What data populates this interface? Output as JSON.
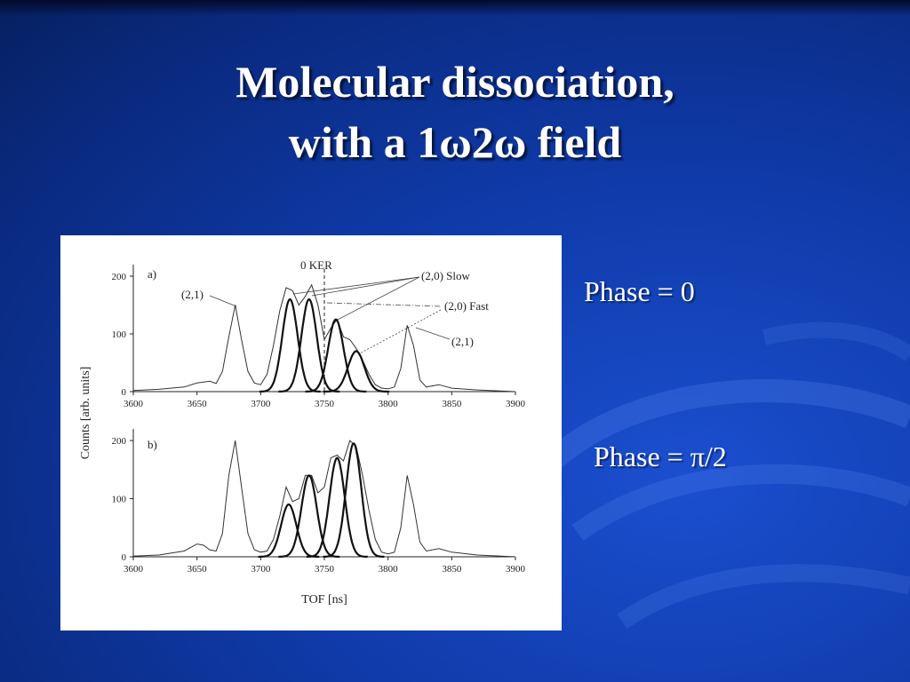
{
  "slide": {
    "title_line1": "Molecular dissociation,",
    "title_line2": "with a 1ω2ω field",
    "phase_a": "Phase = 0",
    "phase_b": "Phase = π/2"
  },
  "colors": {
    "background": "#0f3aa8",
    "text": "#ffffff",
    "plot_line": "#222222"
  },
  "chart_data": [
    {
      "type": "line",
      "panel": "a)",
      "xlabel": "TOF [ns]",
      "ylabel": "Counts [arb. units]",
      "xlim": [
        3600,
        3900
      ],
      "ylim": [
        0,
        220
      ],
      "xticks": [
        "3600",
        "3650",
        "3700",
        "3750",
        "3800",
        "3850",
        "3900"
      ],
      "yticks": [
        "0",
        "100",
        "200"
      ],
      "annotations": [
        "(2,1)",
        "0 KER",
        "(2,0) Slow",
        "(2,0) Fast",
        "(2,1)"
      ],
      "ker_line_x": 3750,
      "series": [
        {
          "kind": "measured",
          "points": [
            [
              3600,
              2
            ],
            [
              3620,
              4
            ],
            [
              3640,
              8
            ],
            [
              3650,
              15
            ],
            [
              3660,
              18
            ],
            [
              3665,
              14
            ],
            [
              3670,
              35
            ],
            [
              3675,
              95
            ],
            [
              3680,
              150
            ],
            [
              3685,
              90
            ],
            [
              3690,
              35
            ],
            [
              3695,
              15
            ],
            [
              3700,
              12
            ],
            [
              3705,
              30
            ],
            [
              3710,
              80
            ],
            [
              3715,
              140
            ],
            [
              3720,
              180
            ],
            [
              3725,
              175
            ],
            [
              3730,
              150
            ],
            [
              3735,
              165
            ],
            [
              3740,
              185
            ],
            [
              3745,
              150
            ],
            [
              3750,
              90
            ],
            [
              3755,
              110
            ],
            [
              3760,
              125
            ],
            [
              3765,
              95
            ],
            [
              3770,
              90
            ],
            [
              3775,
              75
            ],
            [
              3780,
              55
            ],
            [
              3785,
              30
            ],
            [
              3790,
              12
            ],
            [
              3795,
              6
            ],
            [
              3800,
              5
            ],
            [
              3805,
              8
            ],
            [
              3810,
              40
            ],
            [
              3815,
              115
            ],
            [
              3820,
              80
            ],
            [
              3825,
              20
            ],
            [
              3830,
              8
            ],
            [
              3840,
              12
            ],
            [
              3850,
              6
            ],
            [
              3870,
              3
            ],
            [
              3900,
              0
            ]
          ]
        },
        {
          "kind": "fit",
          "center": 3723,
          "height": 160,
          "width": 6
        },
        {
          "kind": "fit",
          "center": 3738,
          "height": 160,
          "width": 6
        },
        {
          "kind": "fit",
          "center": 3759,
          "height": 125,
          "width": 6
        },
        {
          "kind": "fit",
          "center": 3775,
          "height": 70,
          "width": 6.5
        }
      ]
    },
    {
      "type": "line",
      "panel": "b)",
      "xlabel": "TOF [ns]",
      "ylabel": "Counts [arb. units]",
      "xlim": [
        3600,
        3900
      ],
      "ylim": [
        0,
        220
      ],
      "xticks": [
        "3600",
        "3650",
        "3700",
        "3750",
        "3800",
        "3850",
        "3900"
      ],
      "yticks": [
        "0",
        "100",
        "200"
      ],
      "series": [
        {
          "kind": "measured",
          "points": [
            [
              3600,
              1
            ],
            [
              3620,
              3
            ],
            [
              3640,
              10
            ],
            [
              3650,
              22
            ],
            [
              3655,
              20
            ],
            [
              3660,
              12
            ],
            [
              3665,
              10
            ],
            [
              3670,
              40
            ],
            [
              3675,
              140
            ],
            [
              3680,
              200
            ],
            [
              3685,
              120
            ],
            [
              3690,
              40
            ],
            [
              3695,
              12
            ],
            [
              3700,
              8
            ],
            [
              3705,
              10
            ],
            [
              3710,
              30
            ],
            [
              3715,
              70
            ],
            [
              3720,
              120
            ],
            [
              3725,
              95
            ],
            [
              3730,
              100
            ],
            [
              3735,
              140
            ],
            [
              3740,
              140
            ],
            [
              3745,
              110
            ],
            [
              3750,
              120
            ],
            [
              3755,
              170
            ],
            [
              3760,
              175
            ],
            [
              3765,
              165
            ],
            [
              3770,
              200
            ],
            [
              3775,
              190
            ],
            [
              3780,
              140
            ],
            [
              3785,
              80
            ],
            [
              3790,
              30
            ],
            [
              3795,
              8
            ],
            [
              3800,
              5
            ],
            [
              3805,
              8
            ],
            [
              3810,
              50
            ],
            [
              3815,
              140
            ],
            [
              3820,
              90
            ],
            [
              3825,
              25
            ],
            [
              3830,
              10
            ],
            [
              3840,
              14
            ],
            [
              3850,
              8
            ],
            [
              3870,
              3
            ],
            [
              3900,
              0
            ]
          ]
        },
        {
          "kind": "fit",
          "center": 3722,
          "height": 90,
          "width": 6
        },
        {
          "kind": "fit",
          "center": 3738,
          "height": 140,
          "width": 6
        },
        {
          "kind": "fit",
          "center": 3760,
          "height": 170,
          "width": 6
        },
        {
          "kind": "fit",
          "center": 3773,
          "height": 195,
          "width": 6
        }
      ]
    }
  ]
}
